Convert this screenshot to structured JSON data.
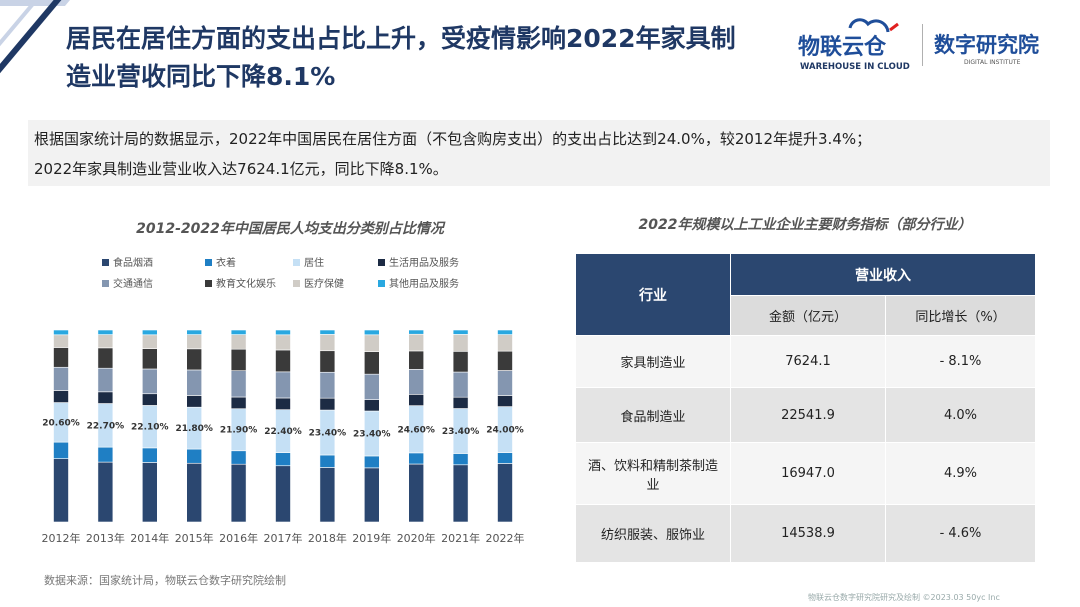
{
  "header": {
    "title_line1": "居民在居住方面的支出占比上升，受疫情影响2022年家具制",
    "title_line2": "造业营收同比下降8.1%"
  },
  "logos": {
    "left_main": "物联云仓",
    "left_sub": "WAREHOUSE IN CLOUD",
    "right_main": "数字研究院",
    "right_sub": "DIGITAL INSTITUTE"
  },
  "summary": {
    "line1": "根据国家统计局的数据显示，2022年中国居民在居住方面（不包含购房支出）的支出占比达到24.0%，较2012年提升3.4%；",
    "line2": "2022年家具制造业营业收入达7624.1亿元，同比下降8.1%。"
  },
  "chart_data": [
    {
      "type": "bar",
      "title": "2012-2022年中国居民人均支出分类别占比情况",
      "stacked": true,
      "normalized_100": true,
      "legend": "top",
      "categories": [
        "2012年",
        "2013年",
        "2014年",
        "2015年",
        "2016年",
        "2017年",
        "2018年",
        "2019年",
        "2020年",
        "2021年",
        "2022年"
      ],
      "series": [
        {
          "name": "食品烟酒",
          "color": "#2b4770",
          "values": [
            33.0,
            31.2,
            31.0,
            30.6,
            30.1,
            29.3,
            28.4,
            28.2,
            30.2,
            29.8,
            30.5
          ]
        },
        {
          "name": "衣着",
          "color": "#1f7fc4",
          "values": [
            8.6,
            7.8,
            7.6,
            7.4,
            7.0,
            6.8,
            6.5,
            6.2,
            5.8,
            5.9,
            5.6
          ]
        },
        {
          "name": "居住",
          "color": "#c5e0f5",
          "values": [
            20.6,
            22.7,
            22.1,
            21.8,
            21.9,
            22.4,
            23.4,
            23.4,
            24.6,
            23.4,
            24.0
          ]
        },
        {
          "name": "生活用品及服务",
          "color": "#1c2b44",
          "values": [
            6.3,
            6.1,
            6.1,
            6.1,
            6.1,
            6.1,
            6.2,
            5.9,
            5.9,
            5.9,
            5.8
          ]
        },
        {
          "name": "交通通信",
          "color": "#8496b0",
          "values": [
            12.1,
            12.3,
            12.9,
            13.3,
            13.7,
            13.6,
            13.5,
            13.3,
            13.0,
            13.1,
            13.0
          ]
        },
        {
          "name": "教育文化娱乐",
          "color": "#3a3a3a",
          "values": [
            10.3,
            10.6,
            10.6,
            11.0,
            11.2,
            11.4,
            11.2,
            11.7,
            9.6,
            10.8,
            10.1
          ]
        },
        {
          "name": "医疗保健",
          "color": "#d0ccc6",
          "values": [
            6.6,
            6.9,
            7.2,
            7.4,
            7.6,
            7.9,
            8.5,
            8.8,
            8.7,
            8.8,
            8.6
          ]
        },
        {
          "name": "其他用品及服务",
          "color": "#29a8e0",
          "values": [
            2.5,
            2.4,
            2.5,
            2.4,
            2.4,
            2.5,
            2.3,
            2.5,
            2.2,
            2.3,
            2.4
          ]
        }
      ],
      "data_labels": {
        "series": "居住",
        "values": [
          "20.60%",
          "22.70%",
          "22.10%",
          "21.80%",
          "21.90%",
          "22.40%",
          "23.40%",
          "23.40%",
          "24.60%",
          "23.40%",
          "24.00%"
        ]
      },
      "ylim": [
        0,
        100
      ]
    },
    {
      "type": "table",
      "title": "2022年规模以上工业企业主要财务指标（部分行业）",
      "header": {
        "industry": "行业",
        "group": "营业收入",
        "amount": "金额（亿元）",
        "growth": "同比增长（%）"
      },
      "rows": [
        {
          "industry": "家具制造业",
          "amount": "7624.1",
          "growth": "- 8.1%"
        },
        {
          "industry": "食品制造业",
          "amount": "22541.9",
          "growth": "4.0%"
        },
        {
          "industry": "酒、饮料和精制茶制造业",
          "amount": "16947.0",
          "growth": "4.9%"
        },
        {
          "industry": "纺织服装、服饰业",
          "amount": "14538.9",
          "growth": "- 4.6%"
        }
      ]
    }
  ],
  "source": "数据来源：国家统计局，物联云仓数字研究院绘制",
  "footer": "物联云仓数字研究院研究及绘制  ©2023.03 50yc Inc"
}
